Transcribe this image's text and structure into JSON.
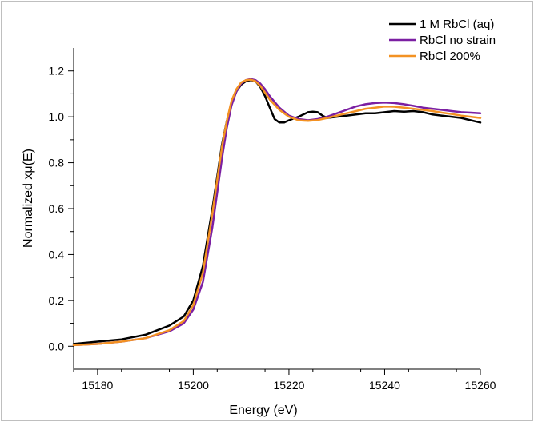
{
  "chart_data": {
    "type": "line",
    "title": "",
    "xlabel": "Energy (eV)",
    "ylabel": "Normalized xμ(E)",
    "xlim": [
      15175,
      15260
    ],
    "ylim": [
      -0.1,
      1.3
    ],
    "x_ticks": [
      15180,
      15200,
      15220,
      15240,
      15260
    ],
    "x_tick_labels": [
      "15180",
      "15200",
      "15220",
      "15240",
      "15260"
    ],
    "y_ticks": [
      0.0,
      0.2,
      0.4,
      0.6,
      0.8,
      1.0,
      1.2
    ],
    "y_tick_labels": [
      "0.0",
      "0.2",
      "0.4",
      "0.6",
      "0.8",
      "1.0",
      "1.2"
    ],
    "grid": false,
    "legend_position": "top-right",
    "series": [
      {
        "name": "1 M RbCl (aq)",
        "color": "#000000",
        "x": [
          15175,
          15180,
          15185,
          15190,
          15195,
          15198,
          15200,
          15202,
          15204,
          15206,
          15207,
          15208,
          15209,
          15210,
          15211,
          15212,
          15213,
          15214,
          15215,
          15216,
          15217,
          15218,
          15219,
          15220,
          15222,
          15224,
          15225,
          15226,
          15227,
          15228,
          15230,
          15232,
          15234,
          15236,
          15238,
          15240,
          15242,
          15244,
          15246,
          15248,
          15250,
          15252,
          15254,
          15256,
          15258,
          15260
        ],
        "y": [
          0.01,
          0.02,
          0.03,
          0.05,
          0.09,
          0.13,
          0.2,
          0.35,
          0.6,
          0.88,
          0.98,
          1.06,
          1.11,
          1.14,
          1.155,
          1.16,
          1.155,
          1.13,
          1.09,
          1.04,
          0.99,
          0.975,
          0.975,
          0.985,
          1.0,
          1.02,
          1.022,
          1.02,
          1.005,
          0.995,
          1.0,
          1.005,
          1.01,
          1.015,
          1.015,
          1.02,
          1.025,
          1.022,
          1.025,
          1.02,
          1.01,
          1.005,
          1.0,
          0.995,
          0.985,
          0.975
        ]
      },
      {
        "name": "RbCl no strain",
        "color": "#7b1fa2",
        "x": [
          15175,
          15180,
          15185,
          15190,
          15195,
          15198,
          15200,
          15202,
          15204,
          15206,
          15207,
          15208,
          15209,
          15210,
          15211,
          15212,
          15213,
          15214,
          15215,
          15216,
          15218,
          15220,
          15222,
          15224,
          15226,
          15228,
          15230,
          15232,
          15234,
          15236,
          15238,
          15240,
          15242,
          15244,
          15246,
          15248,
          15250,
          15252,
          15254,
          15256,
          15258,
          15260
        ],
        "y": [
          0.005,
          0.01,
          0.02,
          0.035,
          0.065,
          0.1,
          0.16,
          0.28,
          0.52,
          0.82,
          0.95,
          1.05,
          1.11,
          1.145,
          1.16,
          1.165,
          1.16,
          1.145,
          1.12,
          1.09,
          1.04,
          1.005,
          0.99,
          0.985,
          0.99,
          1.0,
          1.015,
          1.03,
          1.045,
          1.055,
          1.06,
          1.062,
          1.06,
          1.055,
          1.048,
          1.04,
          1.035,
          1.03,
          1.025,
          1.02,
          1.018,
          1.015
        ]
      },
      {
        "name": "RbCl 200%",
        "color": "#f39223",
        "x": [
          15175,
          15180,
          15185,
          15190,
          15195,
          15198,
          15200,
          15202,
          15204,
          15206,
          15207,
          15208,
          15209,
          15210,
          15211,
          15212,
          15213,
          15214,
          15215,
          15216,
          15218,
          15220,
          15222,
          15224,
          15226,
          15228,
          15230,
          15232,
          15234,
          15236,
          15238,
          15240,
          15242,
          15244,
          15246,
          15248,
          15250,
          15252,
          15254,
          15256,
          15258,
          15260
        ],
        "y": [
          0.005,
          0.01,
          0.02,
          0.035,
          0.07,
          0.11,
          0.18,
          0.32,
          0.58,
          0.87,
          0.98,
          1.07,
          1.12,
          1.15,
          1.16,
          1.162,
          1.155,
          1.135,
          1.105,
          1.075,
          1.03,
          1.0,
          0.985,
          0.982,
          0.986,
          0.995,
          1.005,
          1.015,
          1.025,
          1.035,
          1.04,
          1.045,
          1.044,
          1.04,
          1.035,
          1.03,
          1.025,
          1.018,
          1.012,
          1.005,
          1.0,
          0.995
        ]
      }
    ]
  }
}
